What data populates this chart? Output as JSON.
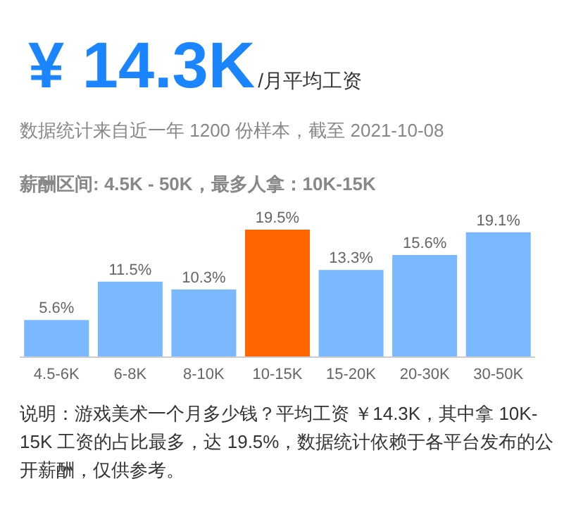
{
  "chart_data": {
    "type": "bar",
    "title": "¥ 14.3K",
    "subtitle": "/月平均工资",
    "annotations": [
      "数据统计来自近一年 1200 份样本，截至 2021-10-08",
      "薪酬区间: 4.5K - 50K，最多人拿：10K-15K",
      "说明：游戏美术一个月多少钱？平均工资 ￥14.3K，其中拿 10K-15K 工资的占比最多，达 19.5%，数据统计依赖于各平台发布的公开薪酬，仅供参考。"
    ],
    "categories": [
      "4.5-6K",
      "6-8K",
      "8-10K",
      "10-15K",
      "15-20K",
      "20-30K",
      "30-50K"
    ],
    "values": [
      5.6,
      11.5,
      10.3,
      19.5,
      13.3,
      15.6,
      19.1
    ],
    "value_labels": [
      "5.6%",
      "11.5%",
      "10.3%",
      "19.5%",
      "13.3%",
      "15.6%",
      "19.1%"
    ],
    "colors": [
      "#7ab8ff",
      "#7ab8ff",
      "#7ab8ff",
      "#ff6600",
      "#7ab8ff",
      "#7ab8ff",
      "#7ab8ff"
    ]
  }
}
